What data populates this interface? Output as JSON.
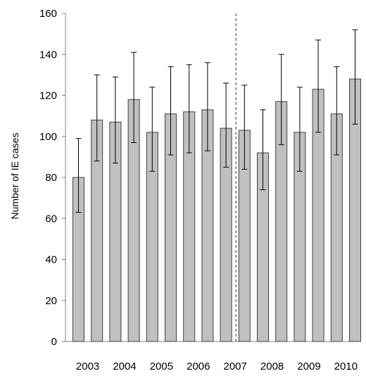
{
  "chart_data": {
    "type": "bar",
    "title": "",
    "xlabel": "",
    "ylabel": "Number of IE cases",
    "ylim": [
      0,
      160
    ],
    "y_ticks": [
      0,
      20,
      40,
      60,
      80,
      100,
      120,
      140,
      160
    ],
    "x_tick_labels": [
      "2003",
      "2004",
      "2005",
      "2006",
      "2007",
      "2008",
      "2009",
      "2010"
    ],
    "bars_per_year": 2,
    "values": [
      80,
      108,
      107,
      118,
      102,
      111,
      112,
      113,
      104,
      103,
      92,
      117,
      102,
      123,
      111,
      128
    ],
    "error_lower": [
      63,
      88,
      87,
      97,
      83,
      91,
      92,
      93,
      85,
      84,
      74,
      96,
      83,
      102,
      91,
      106
    ],
    "error_upper": [
      99,
      130,
      129,
      141,
      124,
      134,
      135,
      136,
      126,
      125,
      113,
      140,
      124,
      147,
      134,
      152
    ],
    "divider_after_bar": 9,
    "bar_color": "#c0c0c0",
    "bar_edge_color": "#404040",
    "grid": false,
    "legend": "none"
  }
}
